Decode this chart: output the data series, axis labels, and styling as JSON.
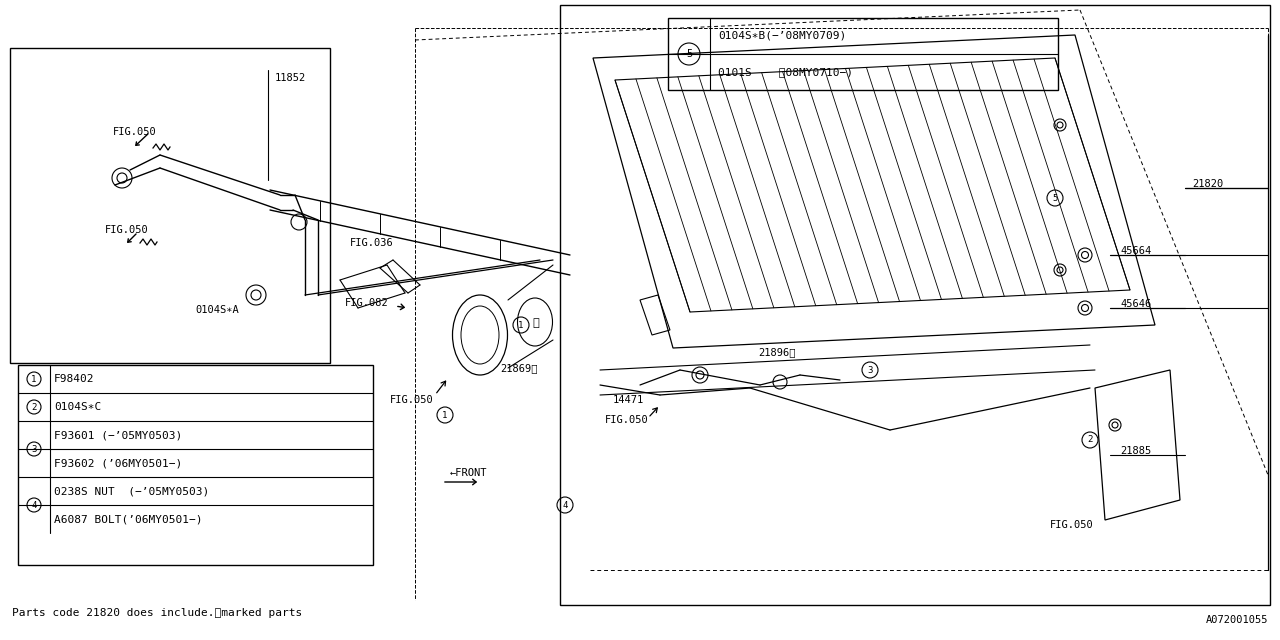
{
  "bg_color": "#ffffff",
  "line_color": "#000000",
  "fig_width": 12.8,
  "fig_height": 6.4,
  "footer_text": "Parts code 21820 does include.※marked parts",
  "ref_code": "A072001055",
  "callout5_line1": "0104S∗B(−’08MY0709)",
  "callout5_line2": "0101S    〈08MY0710−)",
  "tbl_r1": "F98402",
  "tbl_r2": "0104S∗C",
  "tbl_r3a": "F93601 (−’05MY0503)",
  "tbl_r3b": "F93602 (’06MY0501−)",
  "tbl_r4a": "0238S NUT  (−’05MY0503)",
  "tbl_r4b": "A6087 BOLT(’06MY0501−)",
  "label_0104SA": "0104S∗A",
  "label_11852": "11852",
  "label_21820": "21820",
  "label_45664": "45664",
  "label_45646": "45646",
  "label_21869": "21869※",
  "label_21896": "21896※",
  "label_14471": "14471",
  "label_21885": "21885",
  "fig036": "FIG.036",
  "fig082": "FIG.082",
  "fig050": "FIG.050"
}
